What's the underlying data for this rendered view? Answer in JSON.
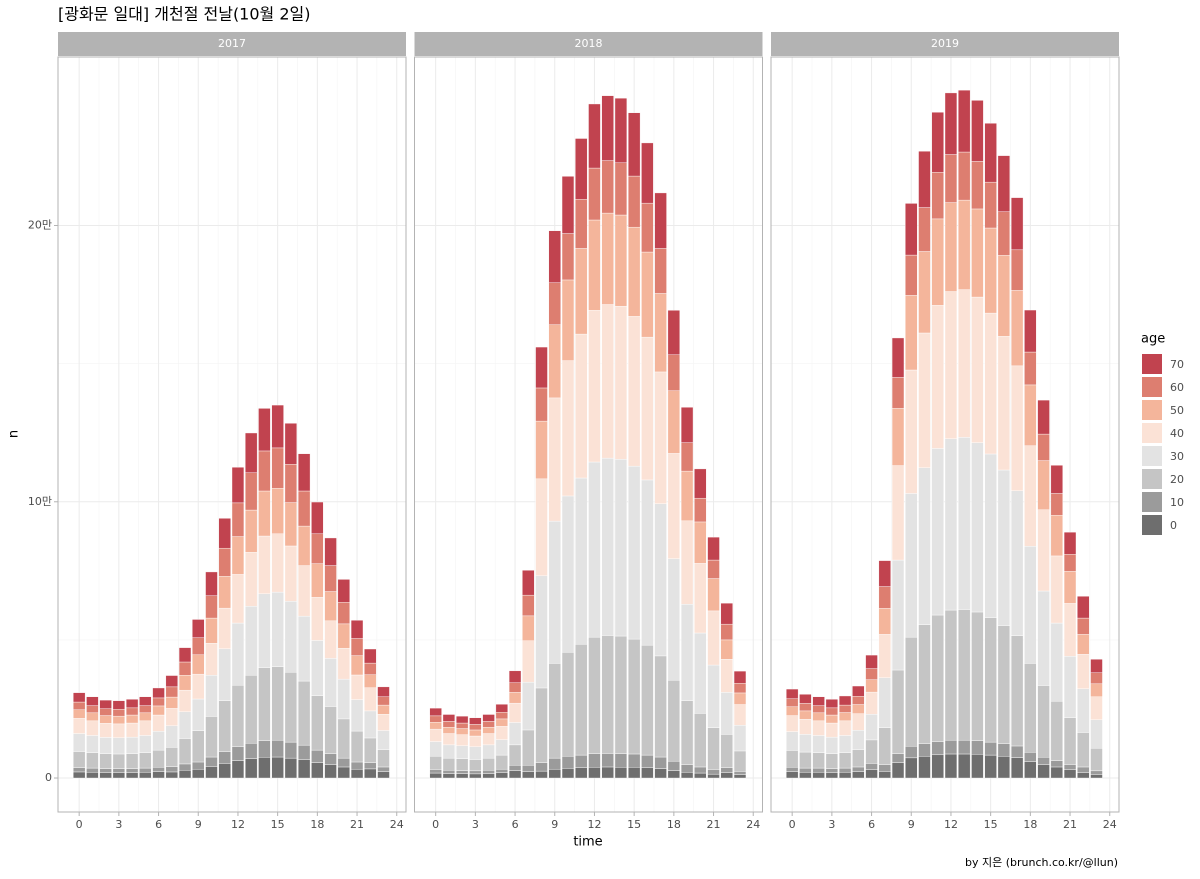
{
  "title": "[광화문 일대] 개천절 전날(10월 2일)",
  "caption": "by 지은 (brunch.co.kr/@llun)",
  "chart_data": {
    "type": "bar",
    "stacked": true,
    "grid": true,
    "facets": [
      "2017",
      "2018",
      "2019"
    ],
    "x_label": "time",
    "y_label": "n",
    "legend_title": "age",
    "x": [
      0,
      1,
      2,
      3,
      4,
      5,
      6,
      7,
      8,
      9,
      10,
      11,
      12,
      13,
      14,
      15,
      16,
      17,
      18,
      19,
      20,
      21,
      22,
      23
    ],
    "xlim": [
      -1.6,
      24.7
    ],
    "xticks": [
      0,
      3,
      6,
      9,
      12,
      15,
      18,
      21,
      24
    ],
    "ylim": [
      -12300,
      261000
    ],
    "yticks": [
      0,
      {
        "value": 100000,
        "label": "10만"
      },
      {
        "value": 200000,
        "label": "20만"
      }
    ],
    "series": [
      {
        "name": "0",
        "color": "#6e6e6e",
        "values": [
          [
            2200,
            2100,
            2000,
            2000,
            2000,
            2100,
            2300,
            2200,
            2800,
            3200,
            4200,
            5300,
            6300,
            7000,
            7500,
            7600,
            7200,
            6600,
            5600,
            4900,
            4000,
            3200,
            3300,
            2300
          ],
          [
            1800,
            1600,
            1600,
            1500,
            1600,
            1900,
            2700,
            2300,
            2500,
            3200,
            3500,
            3700,
            3900,
            4000,
            3900,
            3900,
            3700,
            3400,
            2700,
            2100,
            1800,
            1400,
            1900,
            1200
          ],
          [
            2300,
            2100,
            2100,
            2000,
            2100,
            2300,
            3100,
            2400,
            5600,
            7300,
            7900,
            8400,
            8700,
            8700,
            8600,
            8300,
            7900,
            7400,
            5900,
            4800,
            4000,
            3100,
            2000,
            1300
          ]
        ]
      },
      {
        "name": "10",
        "color": "#9b9b9b",
        "values": [
          [
            1500,
            1500,
            1400,
            1400,
            1400,
            1500,
            1600,
            1900,
            2300,
            2600,
            3400,
            4200,
            5100,
            5600,
            6000,
            6100,
            5800,
            5300,
            4500,
            3900,
            3200,
            2600,
            2300,
            1700
          ],
          [
            1300,
            1200,
            1100,
            1100,
            1200,
            1300,
            1900,
            2300,
            3100,
            4000,
            4400,
            4600,
            4900,
            4900,
            4900,
            4800,
            4600,
            4200,
            3400,
            2700,
            2200,
            1700,
            1900,
            1200
          ],
          [
            1600,
            1500,
            1500,
            1400,
            1500,
            1700,
            2200,
            2400,
            3200,
            4200,
            4500,
            4800,
            5000,
            5000,
            4900,
            4700,
            4500,
            4200,
            3400,
            2700,
            2300,
            1800,
            2000,
            1300
          ]
        ]
      },
      {
        "name": "20",
        "color": "#c5c5c5",
        "values": [
          [
            5900,
            5600,
            5400,
            5300,
            5400,
            5600,
            6200,
            7000,
            9200,
            11300,
            14700,
            18500,
            22200,
            24600,
            26400,
            26600,
            25300,
            23200,
            19700,
            17100,
            14200,
            11200,
            8900,
            6300
          ],
          [
            4800,
            4400,
            4300,
            4100,
            4400,
            5100,
            7400,
            12800,
            27000,
            34300,
            37600,
            40100,
            42200,
            42700,
            42600,
            41600,
            39800,
            36600,
            29300,
            23200,
            19400,
            15100,
            12000,
            7400
          ],
          [
            6100,
            5800,
            5600,
            5400,
            5600,
            6300,
            8500,
            13400,
            30300,
            39500,
            43100,
            45800,
            47100,
            47300,
            46600,
            45000,
            42800,
            39900,
            32200,
            26000,
            21500,
            16900,
            12500,
            8200
          ]
        ]
      },
      {
        "name": "30",
        "color": "#e3e3e3",
        "values": [
          [
            6500,
            6200,
            5900,
            5900,
            6000,
            6200,
            6800,
            7800,
            9700,
            11500,
            14900,
            18800,
            22500,
            25000,
            26800,
            27000,
            25700,
            23500,
            20000,
            17400,
            14400,
            11400,
            9800,
            6900
          ],
          [
            5300,
            4800,
            4700,
            4600,
            4800,
            5600,
            8100,
            17300,
            40600,
            51500,
            56600,
            60200,
            63400,
            64200,
            64000,
            62600,
            59800,
            55100,
            44000,
            34900,
            29100,
            22700,
            15200,
            9300
          ],
          [
            6800,
            6400,
            6200,
            6000,
            6200,
            7000,
            9300,
            18100,
            39800,
            52000,
            56800,
            60300,
            62000,
            62300,
            61300,
            59300,
            56300,
            52500,
            42400,
            34200,
            28300,
            22300,
            15800,
            10300
          ]
        ]
      },
      {
        "name": "40",
        "color": "#fbe2d6",
        "values": [
          [
            5500,
            5300,
            5100,
            5000,
            5100,
            5300,
            5900,
            6300,
            7800,
            9000,
            11600,
            14700,
            17600,
            19500,
            20900,
            21100,
            20000,
            18300,
            15600,
            13600,
            11200,
            8900,
            8400,
            5900
          ],
          [
            4500,
            4100,
            4000,
            3900,
            4100,
            4800,
            7000,
            15000,
            35100,
            44600,
            49000,
            52100,
            54900,
            55600,
            55400,
            54200,
            51700,
            47700,
            38100,
            30200,
            25200,
            19600,
            12000,
            7500
          ],
          [
            5800,
            5500,
            5300,
            5100,
            5300,
            6000,
            8000,
            15700,
            34200,
            44700,
            48800,
            51800,
            53300,
            53500,
            52700,
            51000,
            48400,
            45200,
            36400,
            29400,
            24300,
            19100,
            12500,
            8300
          ]
        ]
      },
      {
        "name": "50",
        "color": "#f4b59b",
        "values": [
          [
            3100,
            2900,
            2800,
            2800,
            2900,
            2900,
            3300,
            4100,
            5400,
            7000,
            9100,
            11500,
            13700,
            15300,
            16300,
            16500,
            15700,
            14300,
            12200,
            10600,
            8800,
            7000,
            4700,
            3300
          ],
          [
            2500,
            2300,
            2200,
            2200,
            2300,
            2700,
            3900,
            9000,
            20900,
            26500,
            29200,
            31000,
            32700,
            33100,
            33000,
            32300,
            30800,
            28400,
            22700,
            18000,
            15000,
            11700,
            7000,
            4200
          ],
          [
            3200,
            3000,
            2900,
            2900,
            3000,
            3300,
            4500,
            9400,
            20700,
            27000,
            29500,
            31300,
            32200,
            32400,
            31900,
            30800,
            29300,
            27300,
            22000,
            17800,
            14700,
            11600,
            7200,
            4700
          ]
        ]
      },
      {
        "name": "60",
        "color": "#dd7e70",
        "values": [
          [
            2800,
            2600,
            2500,
            2500,
            2600,
            2600,
            2900,
            3700,
            4800,
            6200,
            8100,
            10200,
            12200,
            13500,
            14500,
            14600,
            13900,
            12700,
            10800,
            9400,
            7800,
            6200,
            4200,
            3000
          ],
          [
            2300,
            2100,
            2000,
            2000,
            2100,
            2400,
            3500,
            7500,
            12000,
            15200,
            16800,
            17800,
            18800,
            19000,
            18900,
            18500,
            17700,
            16300,
            13000,
            10300,
            8600,
            6700,
            5700,
            3500
          ],
          [
            2900,
            2700,
            2600,
            2600,
            2700,
            3000,
            4000,
            7900,
            11200,
            14600,
            15900,
            16900,
            17400,
            17400,
            17200,
            16600,
            15800,
            14700,
            11900,
            9600,
            7900,
            6200,
            5900,
            4000
          ]
        ]
      },
      {
        "name": "70",
        "color": "#c1434f",
        "values": [
          [
            3400,
            3200,
            3100,
            3100,
            3100,
            3200,
            3600,
            4100,
            5200,
            6600,
            8600,
            10800,
            12900,
            14400,
            15400,
            15500,
            14800,
            13500,
            11500,
            10000,
            8300,
            6600,
            5100,
            3600
          ],
          [
            2800,
            2500,
            2500,
            2400,
            2500,
            2900,
            4300,
            9000,
            14800,
            18800,
            20700,
            22000,
            23200,
            23500,
            23400,
            22900,
            21800,
            20100,
            16100,
            12800,
            10600,
            8300,
            7600,
            4400
          ],
          [
            3500,
            3300,
            3200,
            3100,
            3300,
            3700,
            4900,
            9400,
            14300,
            18700,
            20400,
            21700,
            22300,
            22400,
            22100,
            21300,
            20300,
            18900,
            15200,
            12300,
            10200,
            8000,
            7900,
            4900
          ]
        ]
      }
    ]
  }
}
